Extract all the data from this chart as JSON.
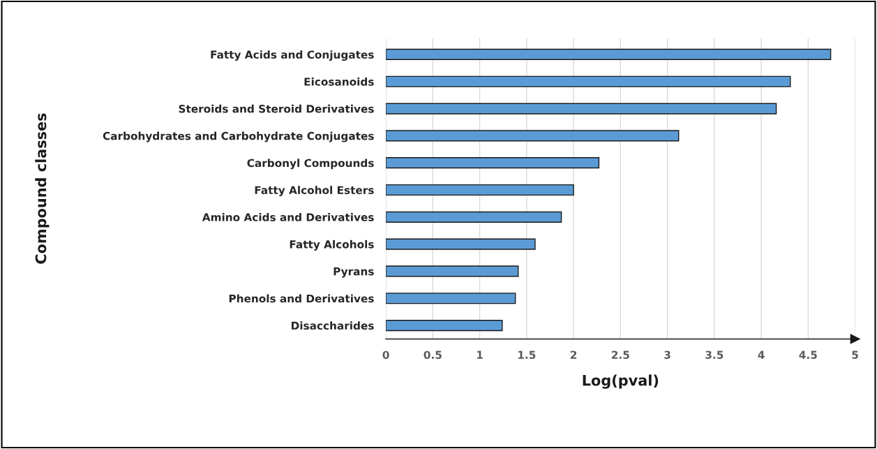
{
  "chart_data": {
    "type": "bar",
    "orientation": "horizontal",
    "xlabel": "Log(pval)",
    "ylabel": "Compound classes",
    "categories": [
      "Fatty Acids and Conjugates",
      "Eicosanoids",
      "Steroids and Steroid Derivatives",
      "Carbohydrates and Carbohydrate Conjugates",
      "Carbonyl Compounds",
      "Fatty Alcohol Esters",
      "Amino Acids and Derivatives",
      "Fatty Alcohols",
      "Pyrans",
      "Phenols and Derivatives",
      "Disaccharides"
    ],
    "values": [
      4.74,
      4.31,
      4.16,
      3.12,
      2.27,
      2.0,
      1.87,
      1.59,
      1.41,
      1.38,
      1.24
    ],
    "color": "#5b9bd5",
    "xlim": [
      0,
      5
    ],
    "xticks": [
      0,
      0.5,
      1,
      1.5,
      2,
      2.5,
      3,
      3.5,
      4,
      4.5,
      5
    ],
    "grid": "x",
    "legend": false
  }
}
